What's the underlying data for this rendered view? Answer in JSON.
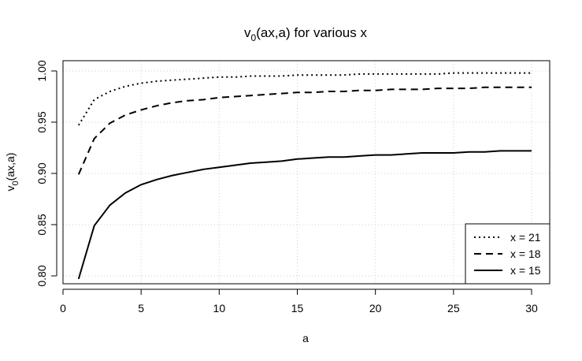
{
  "chart_data": {
    "type": "line",
    "title": {
      "main": "v",
      "sub": "0",
      "rest": "(ax,a) for various x"
    },
    "xlabel": "a",
    "ylabel": {
      "main": "v",
      "sub": "0",
      "rest": "(ax,a)"
    },
    "xlim": [
      0,
      30
    ],
    "ylim": [
      0.79,
      1.0
    ],
    "xticks": [
      0,
      5,
      10,
      15,
      20,
      25,
      30
    ],
    "xtick_labels": [
      "0",
      "5",
      "10",
      "15",
      "20",
      "25",
      "30"
    ],
    "yticks": [
      0.8,
      0.85,
      0.9,
      0.95,
      1.0
    ],
    "ytick_labels": [
      "0.80",
      "0.85",
      "0.90",
      "0.95",
      "1.00"
    ],
    "grid": true,
    "legend_position": "bottom-right",
    "x": [
      1,
      2,
      3,
      4,
      5,
      6,
      7,
      8,
      9,
      10,
      11,
      12,
      13,
      14,
      15,
      16,
      17,
      18,
      19,
      20,
      21,
      22,
      23,
      24,
      25,
      26,
      27,
      28,
      29,
      30
    ],
    "series": [
      {
        "name": "x = 21",
        "style": "dotted",
        "values": [
          0.947,
          0.972,
          0.98,
          0.985,
          0.988,
          0.99,
          0.991,
          0.992,
          0.993,
          0.994,
          0.994,
          0.995,
          0.995,
          0.995,
          0.996,
          0.996,
          0.996,
          0.996,
          0.997,
          0.997,
          0.997,
          0.997,
          0.997,
          0.997,
          0.998,
          0.998,
          0.998,
          0.998,
          0.998,
          0.998
        ]
      },
      {
        "name": "x = 18",
        "style": "dashed",
        "values": [
          0.899,
          0.934,
          0.949,
          0.957,
          0.962,
          0.966,
          0.969,
          0.971,
          0.972,
          0.974,
          0.975,
          0.976,
          0.977,
          0.978,
          0.979,
          0.979,
          0.98,
          0.98,
          0.981,
          0.981,
          0.982,
          0.982,
          0.982,
          0.983,
          0.983,
          0.983,
          0.984,
          0.984,
          0.984,
          0.984
        ]
      },
      {
        "name": "x = 15",
        "style": "solid",
        "values": [
          0.797,
          0.849,
          0.869,
          0.881,
          0.889,
          0.894,
          0.898,
          0.901,
          0.904,
          0.906,
          0.908,
          0.91,
          0.911,
          0.912,
          0.914,
          0.915,
          0.916,
          0.916,
          0.917,
          0.918,
          0.918,
          0.919,
          0.92,
          0.92,
          0.92,
          0.921,
          0.921,
          0.922,
          0.922,
          0.922
        ]
      }
    ]
  }
}
